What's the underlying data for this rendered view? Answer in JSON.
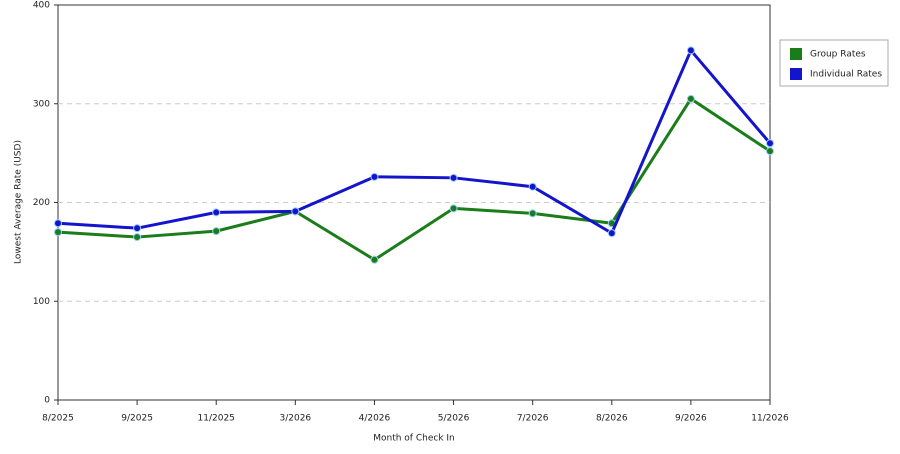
{
  "chart_data": {
    "type": "line",
    "x_label": "Month of Check In",
    "y_label": "Lowest Average Rate (USD)",
    "categories": [
      "8/2025",
      "9/2025",
      "11/2025",
      "3/2026",
      "4/2026",
      "5/2026",
      "7/2026",
      "8/2026",
      "9/2026",
      "11/2026"
    ],
    "series": [
      {
        "name": "Group Rates",
        "color": "#1a7d1a",
        "values": [
          170,
          165,
          171,
          191,
          142,
          194,
          189,
          179,
          305,
          252
        ]
      },
      {
        "name": "Individual Rates",
        "color": "#1414cc",
        "values": [
          179,
          174,
          190,
          191,
          226,
          225,
          216,
          169,
          354,
          260
        ]
      }
    ],
    "ylim": [
      0,
      400
    ],
    "yticks": [
      0,
      100,
      200,
      300,
      400
    ],
    "grid": true,
    "legend": "right"
  }
}
